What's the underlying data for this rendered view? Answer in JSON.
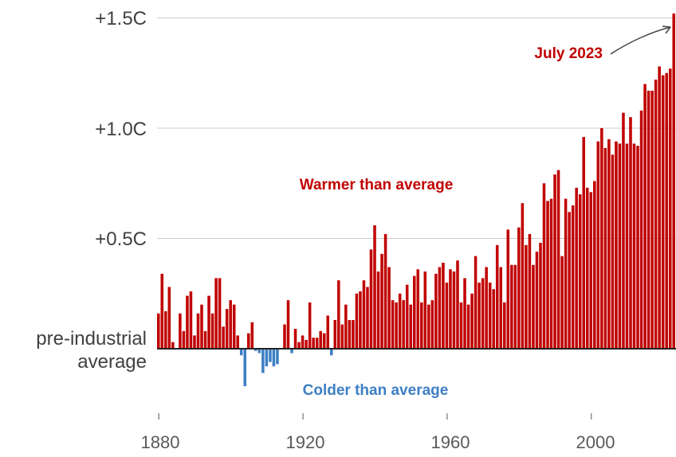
{
  "chart_data": {
    "type": "bar",
    "x": [
      1880,
      1881,
      1882,
      1883,
      1884,
      1885,
      1886,
      1887,
      1888,
      1889,
      1890,
      1891,
      1892,
      1893,
      1894,
      1895,
      1896,
      1897,
      1898,
      1899,
      1900,
      1901,
      1902,
      1903,
      1904,
      1905,
      1906,
      1907,
      1908,
      1909,
      1910,
      1911,
      1912,
      1913,
      1914,
      1915,
      1916,
      1917,
      1918,
      1919,
      1920,
      1921,
      1922,
      1923,
      1924,
      1925,
      1926,
      1927,
      1928,
      1929,
      1930,
      1931,
      1932,
      1933,
      1934,
      1935,
      1936,
      1937,
      1938,
      1939,
      1940,
      1941,
      1942,
      1943,
      1944,
      1945,
      1946,
      1947,
      1948,
      1949,
      1950,
      1951,
      1952,
      1953,
      1954,
      1955,
      1956,
      1957,
      1958,
      1959,
      1960,
      1961,
      1962,
      1963,
      1964,
      1965,
      1966,
      1967,
      1968,
      1969,
      1970,
      1971,
      1972,
      1973,
      1974,
      1975,
      1976,
      1977,
      1978,
      1979,
      1980,
      1981,
      1982,
      1983,
      1984,
      1985,
      1986,
      1987,
      1988,
      1989,
      1990,
      1991,
      1992,
      1993,
      1994,
      1995,
      1996,
      1997,
      1998,
      1999,
      2000,
      2001,
      2002,
      2003,
      2004,
      2005,
      2006,
      2007,
      2008,
      2009,
      2010,
      2011,
      2012,
      2013,
      2014,
      2015,
      2016,
      2017,
      2018,
      2019,
      2020,
      2021,
      2022,
      2023
    ],
    "values": [
      0.16,
      0.34,
      0.17,
      0.28,
      0.03,
      0.0,
      0.16,
      0.08,
      0.24,
      0.26,
      0.06,
      0.16,
      0.2,
      0.08,
      0.24,
      0.16,
      0.32,
      0.32,
      0.1,
      0.18,
      0.22,
      0.2,
      0.06,
      -0.03,
      -0.17,
      0.07,
      0.12,
      -0.01,
      -0.02,
      -0.11,
      -0.08,
      -0.06,
      -0.08,
      -0.07,
      0.0,
      0.11,
      0.22,
      -0.02,
      0.09,
      0.03,
      0.06,
      0.04,
      0.21,
      0.05,
      0.05,
      0.08,
      0.07,
      0.15,
      -0.03,
      0.13,
      0.31,
      0.11,
      0.2,
      0.13,
      0.13,
      0.25,
      0.26,
      0.31,
      0.28,
      0.45,
      0.56,
      0.35,
      0.43,
      0.52,
      0.37,
      0.22,
      0.21,
      0.25,
      0.22,
      0.29,
      0.2,
      0.33,
      0.36,
      0.21,
      0.35,
      0.2,
      0.22,
      0.34,
      0.37,
      0.39,
      0.3,
      0.36,
      0.35,
      0.4,
      0.21,
      0.32,
      0.2,
      0.25,
      0.42,
      0.3,
      0.32,
      0.37,
      0.3,
      0.27,
      0.47,
      0.37,
      0.21,
      0.54,
      0.38,
      0.38,
      0.55,
      0.66,
      0.47,
      0.52,
      0.38,
      0.44,
      0.48,
      0.75,
      0.67,
      0.68,
      0.79,
      0.81,
      0.42,
      0.68,
      0.62,
      0.65,
      0.73,
      0.7,
      0.96,
      0.73,
      0.71,
      0.76,
      0.94,
      1.0,
      0.91,
      0.95,
      0.88,
      0.94,
      0.93,
      1.07,
      0.93,
      1.05,
      0.93,
      0.92,
      1.08,
      1.2,
      1.17,
      1.17,
      1.22,
      1.28,
      1.24,
      1.25,
      1.27,
      1.52
    ],
    "ylim": [
      -0.3,
      1.5
    ],
    "xlim": [
      1880,
      2023
    ],
    "y_ticks": [
      {
        "value": 1.5,
        "label": "+1.5C"
      },
      {
        "value": 1.0,
        "label": "+1.0C"
      },
      {
        "value": 0.5,
        "label": "+0.5C"
      }
    ],
    "baseline_label": [
      "pre-industrial",
      "average"
    ],
    "x_ticks": [
      {
        "value": 1880,
        "label": "1880"
      },
      {
        "value": 1920,
        "label": "1920"
      },
      {
        "value": 1960,
        "label": "1960"
      },
      {
        "value": 2000,
        "label": "2000"
      }
    ],
    "annotations": {
      "warmer": "Warmer than average",
      "colder": "Colder than average",
      "highlight": "July 2023"
    },
    "colors": {
      "warm": "#c00000",
      "cold": "#3d7fc4",
      "grid": "#cccccc",
      "baseline": "#222222",
      "tick_text": "#404040"
    },
    "grid": true
  }
}
